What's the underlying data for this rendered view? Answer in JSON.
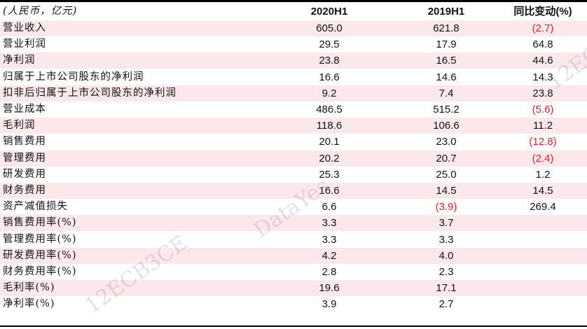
{
  "table": {
    "header": {
      "label": "(人民币，亿元)",
      "col1": "2020H1",
      "col2": "2019H1",
      "col3": "同比变动(%)"
    },
    "rows": [
      {
        "label": "营业收入",
        "col1": "605.0",
        "col2": "621.8",
        "col3": "(2.7)",
        "col3_negative": true
      },
      {
        "label": "营业利润",
        "col1": "29.5",
        "col2": "17.9",
        "col3": "64.8"
      },
      {
        "label": "净利润",
        "col1": "23.8",
        "col2": "16.5",
        "col3": "44.6"
      },
      {
        "label": "归属于上市公司股东的净利润",
        "col1": "16.6",
        "col2": "14.6",
        "col3": "14.3"
      },
      {
        "label": "扣非后归属于上市公司股东的净利润",
        "col1": "9.2",
        "col2": "7.4",
        "col3": "23.8"
      },
      {
        "label": "营业成本",
        "col1": "486.5",
        "col2": "515.2",
        "col3": "(5.6)",
        "col3_negative": true
      },
      {
        "label": "毛利润",
        "col1": "118.6",
        "col2": "106.6",
        "col3": "11.2"
      },
      {
        "label": "销售费用",
        "col1": "20.1",
        "col2": "23.0",
        "col3": "(12.8)",
        "col3_negative": true
      },
      {
        "label": "管理费用",
        "col1": "20.2",
        "col2": "20.7",
        "col3": "(2.4)",
        "col3_negative": true
      },
      {
        "label": "研发费用",
        "col1": "25.3",
        "col2": "25.0",
        "col3": "1.2"
      },
      {
        "label": "财务费用",
        "col1": "16.6",
        "col2": "14.5",
        "col3": "14.5"
      },
      {
        "label": "资产减值损失",
        "col1": "6.6",
        "col2": "(3.9)",
        "col2_negative": true,
        "col3": "269.4"
      },
      {
        "label": "销售费用率(%)",
        "col1": "3.3",
        "col2": "3.7",
        "col3": ""
      },
      {
        "label": "管理费用率(%)",
        "col1": "3.3",
        "col2": "3.3",
        "col3": ""
      },
      {
        "label": "研发费用率(%)",
        "col1": "4.2",
        "col2": "4.0",
        "col3": ""
      },
      {
        "label": "财务费用率(%)",
        "col1": "2.8",
        "col2": "2.3",
        "col3": ""
      },
      {
        "label": "毛利率(%)",
        "col1": "19.6",
        "col2": "17.1",
        "col3": ""
      },
      {
        "label": "净利率(%)",
        "col1": "3.9",
        "col2": "2.7",
        "col3": ""
      }
    ]
  },
  "watermarks": [
    "DataYes",
    "12ECB3CE",
    "12ECB3CE"
  ],
  "colors": {
    "stripe": "#fbe8eb",
    "negative": "#e0202a"
  }
}
